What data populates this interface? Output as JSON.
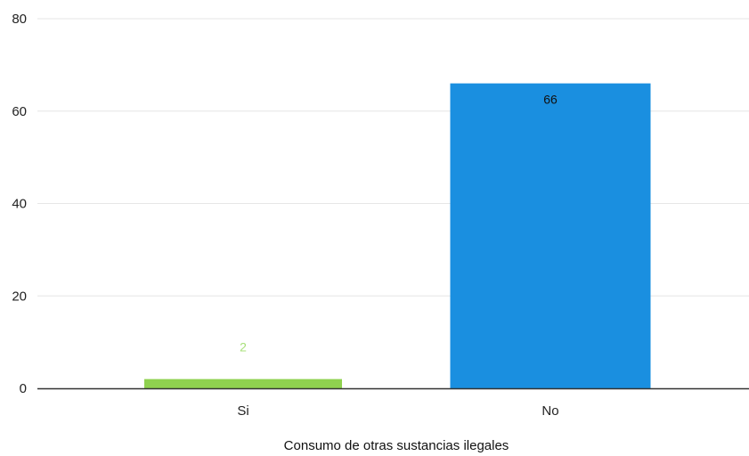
{
  "chart_data": {
    "type": "bar",
    "categories": [
      "Si",
      "No"
    ],
    "values": [
      2,
      66
    ],
    "value_labels": [
      "2",
      "66"
    ],
    "title": "",
    "xlabel": "Consumo de otras sustancias ilegales",
    "ylabel": "",
    "ylim": [
      0,
      80
    ],
    "yticks": [
      "0",
      "20",
      "40",
      "60",
      "80"
    ],
    "grid": true,
    "legend": "none",
    "bar_colors": [
      "#8fd14f",
      "#1a8fe0"
    ],
    "label_colors": [
      "#a8e07a",
      "#111111"
    ],
    "grid_color": "#e6e6e6",
    "axis_color": "#333333"
  }
}
